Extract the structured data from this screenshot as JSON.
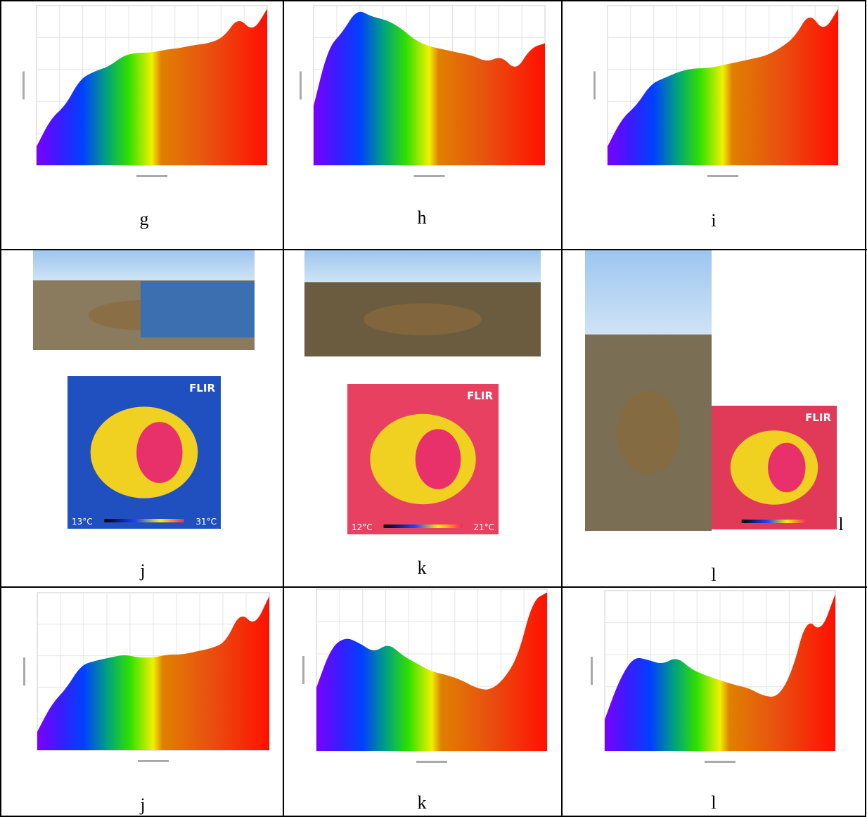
{
  "rows": [
    [
      {
        "label": "g"
      },
      {
        "label": "h"
      },
      {
        "label": "i"
      }
    ],
    [
      {
        "label": "j",
        "thermal": {
          "brand": "FLIR",
          "min": "13°C",
          "max": "31°C"
        }
      },
      {
        "label": "k",
        "thermal": {
          "brand": "FLIR",
          "min": "12°C",
          "max": "21°C"
        }
      },
      {
        "label": "l",
        "thermal": {
          "brand": "FLIR"
        },
        "side_label": "l"
      }
    ],
    [
      {
        "label": "j"
      },
      {
        "label": "k"
      },
      {
        "label": "l"
      }
    ]
  ]
}
